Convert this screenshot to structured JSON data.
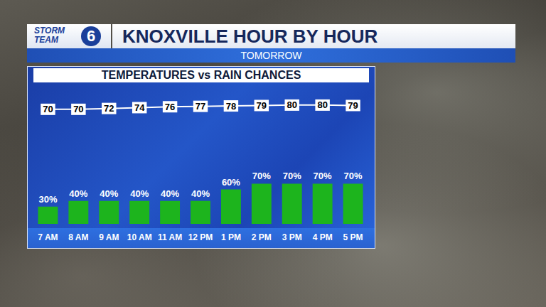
{
  "header": {
    "logo": [
      "STORM",
      "TEAM"
    ],
    "logo_number": "6",
    "title": "KNOXVILLE HOUR BY HOUR",
    "subtitle": "TOMORROW"
  },
  "chart_data": {
    "type": "bar",
    "title": "TEMPERATURES vs RAIN CHANCES",
    "categories": [
      "7 AM",
      "8 AM",
      "9 AM",
      "10 AM",
      "11 AM",
      "12 PM",
      "1 PM",
      "2 PM",
      "3 PM",
      "4 PM",
      "5 PM"
    ],
    "series": [
      {
        "type": "bar",
        "color": "#1db41d",
        "values": [
          30,
          40,
          40,
          40,
          40,
          40,
          60,
          70,
          70,
          70,
          70
        ],
        "value_labels": [
          "30%",
          "40%",
          "40%",
          "40%",
          "40%",
          "40%",
          "60%",
          "70%",
          "70%",
          "70%",
          "70%"
        ]
      },
      {
        "type": "line",
        "axis": "y2",
        "color": "#ffffff",
        "values": [
          70,
          70,
          72,
          74,
          76,
          77,
          78,
          79,
          80,
          80,
          79
        ]
      }
    ],
    "ylim": [
      0,
      240
    ],
    "y2lim": [
      -200,
      125
    ],
    "data_labels": true,
    "tick_labels": "x",
    "grid": false
  }
}
